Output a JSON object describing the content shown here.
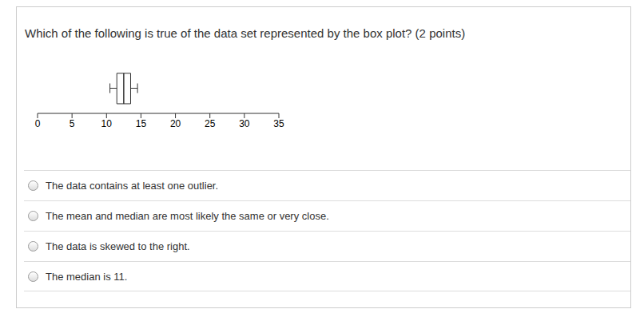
{
  "question": "Which of the following is true of the data set represented by the box plot? (2 points)",
  "chart_data": {
    "type": "box",
    "min": 10.5,
    "q1": 11.5,
    "median": 12.5,
    "q3": 13.5,
    "max": 14.5,
    "xlim": [
      0,
      35
    ],
    "xticks": [
      0,
      5,
      10,
      15,
      20,
      25,
      30,
      35
    ]
  },
  "options": [
    "The data contains at least one outlier.",
    "The mean and median are most likely the same or very close.",
    "The data is skewed to the right.",
    "The median is 11."
  ]
}
